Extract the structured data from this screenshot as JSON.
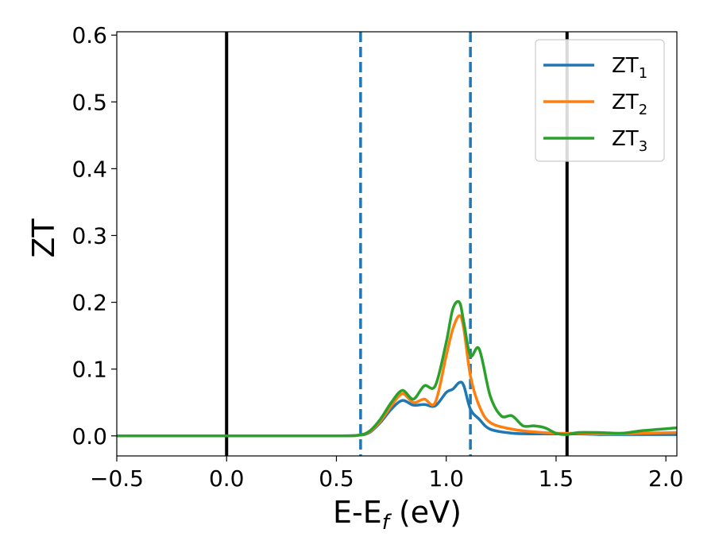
{
  "chart_data": {
    "type": "line",
    "xlabel_main": "E-E",
    "xlabel_sub": "f",
    "xlabel_tail": " (eV)",
    "ylabel": "ZT",
    "xlim": [
      -0.5,
      2.05
    ],
    "ylim": [
      -0.03,
      0.605
    ],
    "xticks": [
      -0.5,
      0.0,
      0.5,
      1.0,
      1.5,
      2.0
    ],
    "xtick_labels": [
      "−0.5",
      "0.0",
      "0.5",
      "1.0",
      "1.5",
      "2.0"
    ],
    "yticks": [
      0.0,
      0.1,
      0.2,
      0.3,
      0.4,
      0.5,
      0.6
    ],
    "ytick_labels": [
      "0.0",
      "0.1",
      "0.2",
      "0.3",
      "0.4",
      "0.5",
      "0.6"
    ],
    "grid": false,
    "legend_position": "top-right",
    "vlines": [
      {
        "x": 0.0,
        "style": "solid",
        "color": "#000000"
      },
      {
        "x": 0.61,
        "style": "dashed",
        "color": "#1f77b4"
      },
      {
        "x": 1.11,
        "style": "dashed",
        "color": "#1f77b4"
      },
      {
        "x": 1.55,
        "style": "solid",
        "color": "#000000"
      }
    ],
    "series": [
      {
        "name": "ZT",
        "subscript": "1",
        "color": "#1f77b4",
        "x": [
          -0.5,
          0.0,
          0.5,
          0.6,
          0.65,
          0.7,
          0.75,
          0.8,
          0.85,
          0.9,
          0.95,
          1.0,
          1.03,
          1.06,
          1.08,
          1.11,
          1.15,
          1.2,
          1.3,
          1.4,
          1.5,
          1.6,
          1.7,
          1.8,
          1.9,
          2.05
        ],
        "y": [
          0.0,
          0.0,
          0.0,
          0.001,
          0.005,
          0.02,
          0.04,
          0.053,
          0.046,
          0.047,
          0.045,
          0.065,
          0.07,
          0.08,
          0.075,
          0.04,
          0.025,
          0.01,
          0.004,
          0.003,
          0.003,
          0.003,
          0.002,
          0.002,
          0.002,
          0.002
        ]
      },
      {
        "name": "ZT",
        "subscript": "2",
        "color": "#ff7f0e",
        "x": [
          -0.5,
          0.0,
          0.5,
          0.6,
          0.65,
          0.7,
          0.75,
          0.8,
          0.85,
          0.9,
          0.95,
          1.0,
          1.03,
          1.06,
          1.08,
          1.11,
          1.15,
          1.2,
          1.3,
          1.4,
          1.5,
          1.6,
          1.7,
          1.8,
          1.9,
          2.05
        ],
        "y": [
          0.0,
          0.0,
          0.0,
          0.001,
          0.006,
          0.022,
          0.045,
          0.063,
          0.05,
          0.055,
          0.05,
          0.12,
          0.16,
          0.18,
          0.16,
          0.09,
          0.045,
          0.02,
          0.01,
          0.006,
          0.004,
          0.004,
          0.003,
          0.003,
          0.004,
          0.005
        ]
      },
      {
        "name": "ZT",
        "subscript": "3",
        "color": "#2ca02c",
        "x": [
          -0.5,
          0.0,
          0.5,
          0.6,
          0.65,
          0.7,
          0.75,
          0.8,
          0.85,
          0.9,
          0.95,
          1.0,
          1.03,
          1.06,
          1.08,
          1.11,
          1.15,
          1.2,
          1.25,
          1.3,
          1.35,
          1.4,
          1.45,
          1.5,
          1.55,
          1.6,
          1.7,
          1.8,
          1.9,
          2.05
        ],
        "y": [
          0.0,
          0.0,
          0.0,
          0.001,
          0.007,
          0.025,
          0.05,
          0.068,
          0.055,
          0.075,
          0.075,
          0.14,
          0.19,
          0.2,
          0.17,
          0.12,
          0.13,
          0.06,
          0.03,
          0.03,
          0.015,
          0.015,
          0.012,
          0.004,
          0.002,
          0.005,
          0.005,
          0.004,
          0.008,
          0.012
        ]
      }
    ]
  }
}
